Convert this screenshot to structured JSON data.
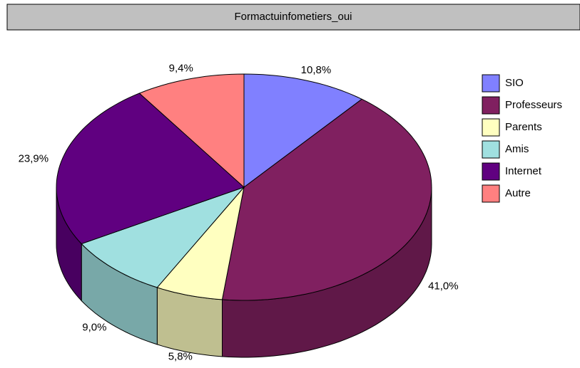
{
  "chart_data": {
    "type": "pie3d",
    "title": "Formactuinfometiers_oui",
    "categories": [
      "SIO",
      "Professeurs",
      "Parents",
      "Amis",
      "Internet",
      "Autre"
    ],
    "values": [
      10.8,
      41.0,
      5.8,
      9.0,
      23.9,
      9.4
    ],
    "value_labels": [
      "10,8%",
      "41,0%",
      "5,8%",
      "9,0%",
      "23,9%",
      "9,4%"
    ],
    "colors": [
      "#8080ff",
      "#802060",
      "#ffffc0",
      "#a0e0e0",
      "#600080",
      "#ff8080"
    ],
    "legend": "right"
  }
}
